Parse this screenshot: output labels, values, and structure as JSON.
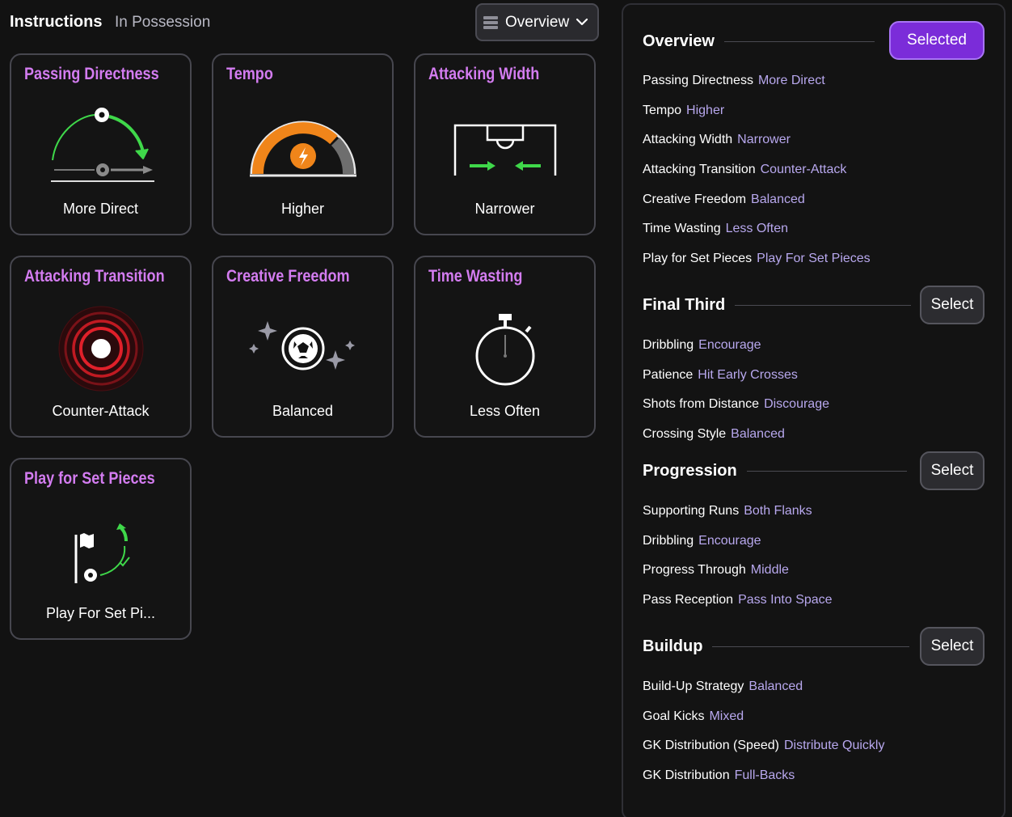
{
  "header": {
    "title": "Instructions",
    "subtitle": "In Possession",
    "view_select": "Overview"
  },
  "cards": [
    {
      "title": "Passing Directness",
      "value": "More Direct",
      "icon": "passing-directness-icon"
    },
    {
      "title": "Tempo",
      "value": "Higher",
      "icon": "tempo-gauge-icon"
    },
    {
      "title": "Attacking Width",
      "value": "Narrower",
      "icon": "pitch-width-icon"
    },
    {
      "title": "Attacking Transition",
      "value": "Counter-Attack",
      "icon": "target-icon"
    },
    {
      "title": "Creative Freedom",
      "value": "Balanced",
      "icon": "sparkle-ball-icon"
    },
    {
      "title": "Time Wasting",
      "value": "Less Often",
      "icon": "stopwatch-icon"
    },
    {
      "title": "Play for Set Pieces",
      "value": "Play For Set Pi...",
      "icon": "corner-flag-icon"
    }
  ],
  "panel": {
    "sections": [
      {
        "title": "Overview",
        "button": "Selected",
        "rows": [
          {
            "label": "Passing Directness",
            "value": "More Direct"
          },
          {
            "label": "Tempo",
            "value": "Higher"
          },
          {
            "label": "Attacking Width",
            "value": "Narrower"
          },
          {
            "label": "Attacking Transition",
            "value": "Counter-Attack"
          },
          {
            "label": "Creative Freedom",
            "value": "Balanced"
          },
          {
            "label": "Time Wasting",
            "value": "Less Often"
          },
          {
            "label": "Play for Set Pieces",
            "value": "Play For Set Pieces"
          }
        ]
      },
      {
        "title": "Final Third",
        "button": "Select",
        "rows": [
          {
            "label": "Dribbling",
            "value": "Encourage"
          },
          {
            "label": "Patience",
            "value": "Hit Early Crosses"
          },
          {
            "label": "Shots from Distance",
            "value": "Discourage"
          },
          {
            "label": "Crossing Style",
            "value": "Balanced"
          }
        ]
      },
      {
        "title": "Progression",
        "button": "Select",
        "rows": [
          {
            "label": "Supporting Runs",
            "value": "Both Flanks"
          },
          {
            "label": "Dribbling",
            "value": "Encourage"
          },
          {
            "label": "Progress Through",
            "value": "Middle"
          },
          {
            "label": "Pass Reception",
            "value": "Pass Into Space"
          }
        ]
      },
      {
        "title": "Buildup",
        "button": "Select",
        "rows": [
          {
            "label": "Build-Up Strategy",
            "value": "Balanced"
          },
          {
            "label": "Goal Kicks",
            "value": "Mixed"
          },
          {
            "label": "GK Distribution (Speed)",
            "value": "Distribute Quickly"
          },
          {
            "label": "GK Distribution",
            "value": "Full-Backs"
          }
        ]
      }
    ]
  },
  "colors": {
    "accent_purple": "#d37cf0",
    "button_selected": "#7b2cd9",
    "value_lavender": "#b8a8ee",
    "arrow_green": "#3fd84a",
    "gauge_orange": "#f0851a",
    "target_red": "#e0202a"
  }
}
